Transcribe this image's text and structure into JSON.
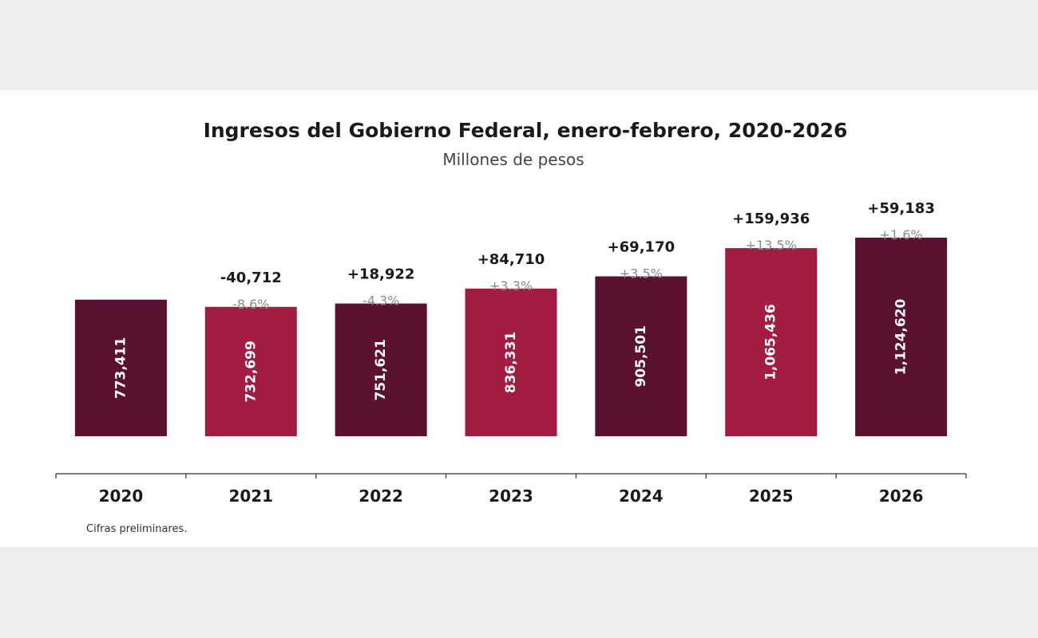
{
  "chart_data": {
    "type": "bar",
    "title": "Ingresos del Gobierno Federal, enero-febrero, 2020-2026",
    "subtitle": "Millones de pesos",
    "categories": [
      "2020",
      "2021",
      "2022",
      "2023",
      "2024",
      "2025",
      "2026"
    ],
    "values": [
      773411,
      732699,
      751621,
      836331,
      905501,
      1065436,
      1124620
    ],
    "value_labels": [
      "773,411",
      "732,699",
      "751,621",
      "836,331",
      "905,501",
      "1,065,436",
      "1,124,620"
    ],
    "change_labels": [
      "",
      "-40,712",
      "+18,922",
      "+84,710",
      "+69,170",
      "+159,936",
      "+59,183"
    ],
    "pct_labels": [
      "",
      "-8.6%",
      "-4.3%",
      "+3.3%",
      "+3.5%",
      "+13.5%",
      "+1.6%"
    ],
    "bar_colors": [
      "#5a1230",
      "#a31c41",
      "#5a1230",
      "#a31c41",
      "#5a1230",
      "#a31c41",
      "#5a1230"
    ],
    "ylim": [
      0,
      1124620
    ],
    "grid": false,
    "legend": "none",
    "footnote": "Cifras preliminares."
  }
}
